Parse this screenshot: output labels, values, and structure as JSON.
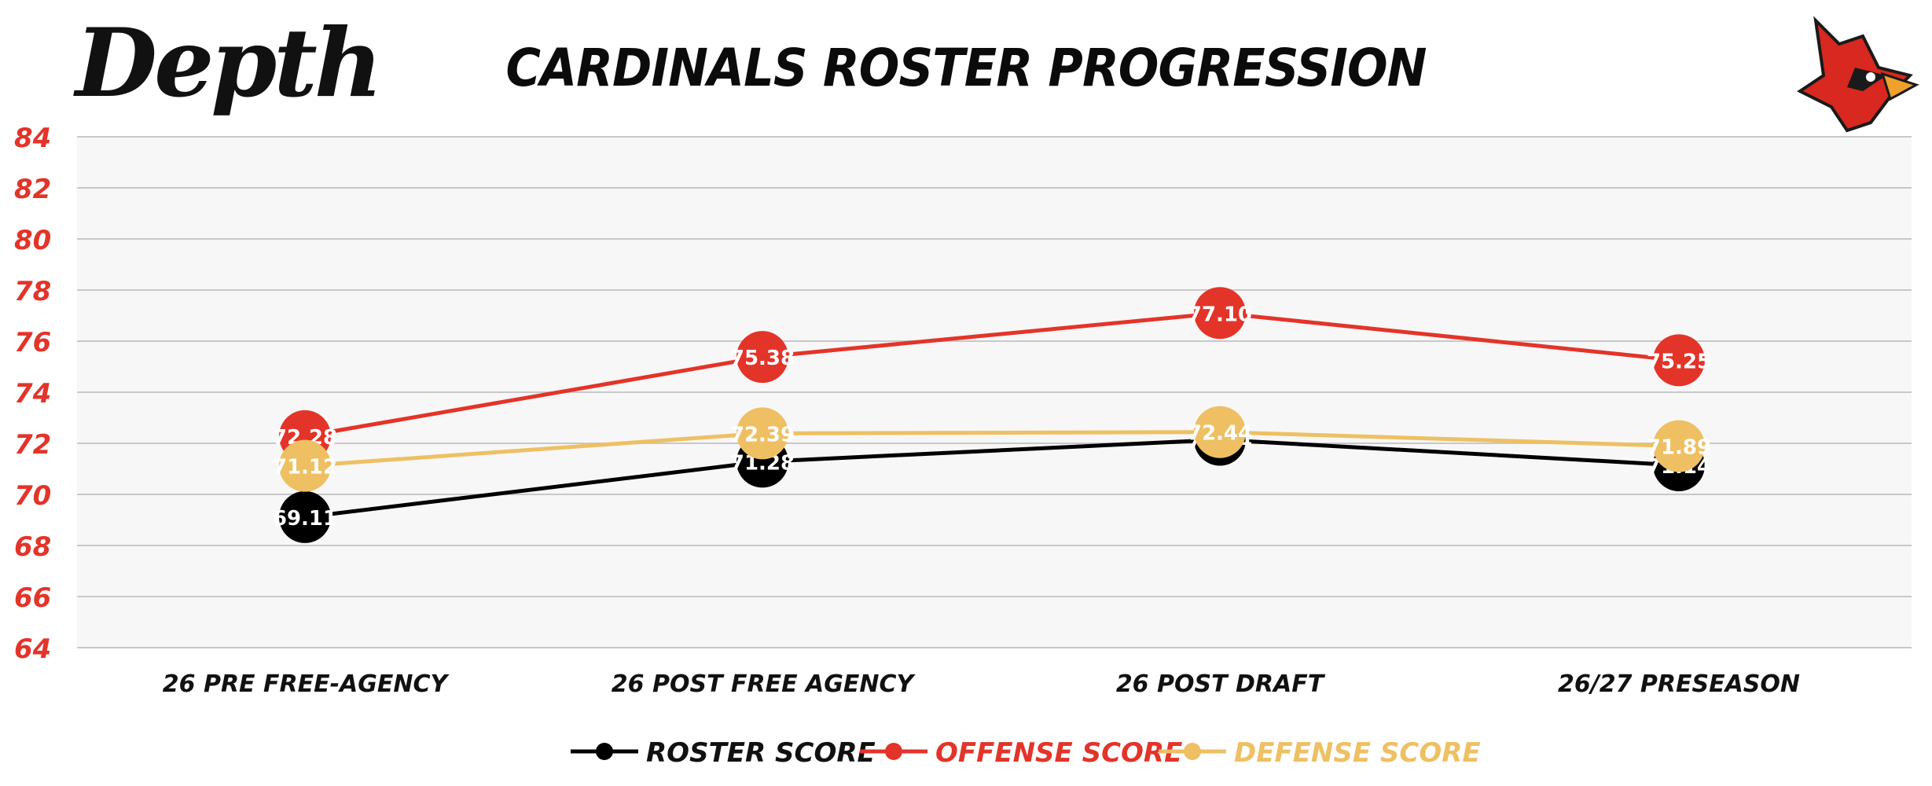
{
  "brand": {
    "logo_text": "Depth",
    "team_logo_icon": "cardinal-head-icon"
  },
  "colors": {
    "roster": "#000000",
    "offense": "#e3342a",
    "defense": "#eec063",
    "axis_text": "#e3342a",
    "plot_bg": "#f7f7f7",
    "grid": "#c8c8c8"
  },
  "chart_data": {
    "type": "line",
    "title": "CARDINALS ROSTER PROGRESSION",
    "categories": [
      "26 PRE FREE-AGENCY",
      "26 POST FREE AGENCY",
      "26 POST DRAFT",
      "26/27 PRESEASON"
    ],
    "ylim": [
      64,
      84
    ],
    "yticks": [
      64,
      66,
      68,
      70,
      72,
      74,
      76,
      78,
      80,
      82,
      84
    ],
    "grid": true,
    "legend_position": "bottom",
    "series": [
      {
        "name": "ROSTER SCORE",
        "color": "#000000",
        "values": [
          69.11,
          71.28,
          72.14,
          71.14
        ],
        "labels": [
          "69.11",
          "71.28",
          "72.14",
          "71.14"
        ]
      },
      {
        "name": "OFFENSE SCORE",
        "color": "#e3342a",
        "values": [
          72.28,
          75.38,
          77.1,
          75.25
        ],
        "labels": [
          "72.28",
          "75.38",
          "77.10",
          "75.25"
        ]
      },
      {
        "name": "DEFENSE SCORE",
        "color": "#eec063",
        "values": [
          71.12,
          72.39,
          72.44,
          71.89
        ],
        "labels": [
          "71.12",
          "72.39",
          "72.44",
          "71.89"
        ]
      }
    ]
  }
}
